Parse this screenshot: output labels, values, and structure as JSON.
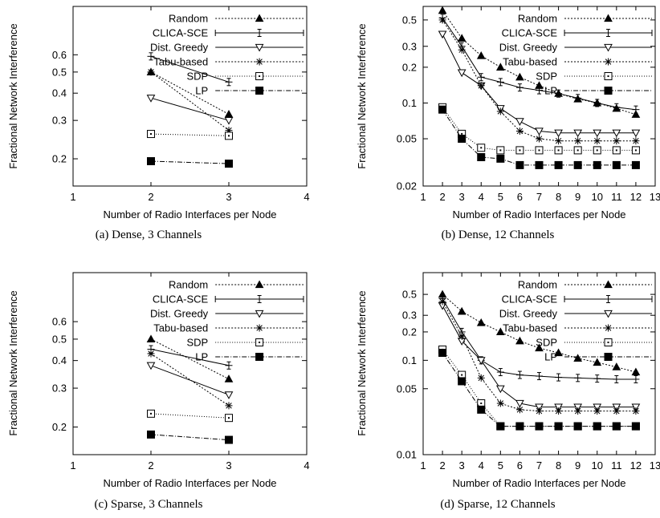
{
  "chart_data": [
    {
      "id": "a",
      "type": "line",
      "caption": "(a) Dense, 3 Channels",
      "xlabel": "Number of Radio Interfaces per Node",
      "ylabel": "Fractional Network Interference",
      "xlim": [
        1,
        4
      ],
      "ylim": [
        0.15,
        1.0
      ],
      "y_scale": "log",
      "xticks": [
        "1",
        "2",
        "3",
        "4"
      ],
      "yticks": [
        "0.2",
        "0.3",
        "0.4",
        "0.5",
        "0.6"
      ],
      "x": [
        2,
        3
      ],
      "legend_position": "top-right",
      "series": [
        {
          "name": "Random",
          "values": [
            0.5,
            0.32
          ]
        },
        {
          "name": "CLICA-SCE",
          "values": [
            0.59,
            0.45
          ]
        },
        {
          "name": "Dist. Greedy",
          "values": [
            0.38,
            0.3
          ]
        },
        {
          "name": "Tabu-based",
          "values": [
            0.5,
            0.27
          ]
        },
        {
          "name": "SDP",
          "values": [
            0.26,
            0.255
          ]
        },
        {
          "name": "LP",
          "values": [
            0.195,
            0.19
          ]
        }
      ]
    },
    {
      "id": "b",
      "type": "line",
      "caption": "(b) Dense, 12 Channels",
      "xlabel": "Number of Radio Interfaces per Node",
      "ylabel": "Fractional Network Interference",
      "xlim": [
        1,
        13
      ],
      "ylim": [
        0.02,
        0.65
      ],
      "y_scale": "log",
      "xticks": [
        "1",
        "2",
        "3",
        "4",
        "5",
        "6",
        "7",
        "8",
        "9",
        "10",
        "11",
        "12",
        "13"
      ],
      "yticks": [
        "0.02",
        "0.05",
        "0.1",
        "0.2",
        "0.3",
        "0.5"
      ],
      "x": [
        2,
        3,
        4,
        5,
        6,
        7,
        8,
        9,
        10,
        11,
        12
      ],
      "legend_position": "top-right",
      "series": [
        {
          "name": "Random",
          "values": [
            0.6,
            0.35,
            0.25,
            0.2,
            0.165,
            0.14,
            0.12,
            0.108,
            0.1,
            0.09,
            0.08
          ]
        },
        {
          "name": "CLICA-SCE",
          "values": [
            0.52,
            0.3,
            0.165,
            0.15,
            0.135,
            0.128,
            0.12,
            0.11,
            0.1,
            0.092,
            0.088
          ]
        },
        {
          "name": "Dist. Greedy",
          "values": [
            0.38,
            0.18,
            0.14,
            0.09,
            0.07,
            0.058,
            0.056,
            0.056,
            0.056,
            0.056,
            0.056
          ]
        },
        {
          "name": "Tabu-based",
          "values": [
            0.5,
            0.28,
            0.14,
            0.085,
            0.058,
            0.05,
            0.048,
            0.048,
            0.048,
            0.048,
            0.048
          ]
        },
        {
          "name": "SDP",
          "values": [
            0.092,
            0.055,
            0.042,
            0.04,
            0.04,
            0.04,
            0.04,
            0.04,
            0.04,
            0.04,
            0.04
          ]
        },
        {
          "name": "LP",
          "values": [
            0.088,
            0.05,
            0.035,
            0.034,
            0.03,
            0.03,
            0.03,
            0.03,
            0.03,
            0.03,
            0.03
          ]
        }
      ]
    },
    {
      "id": "c",
      "type": "line",
      "caption": "(c) Sparse, 3 Channels",
      "xlabel": "Number of Radio Interfaces per Node",
      "ylabel": "Fractional Network Interference",
      "xlim": [
        1,
        4
      ],
      "ylim": [
        0.15,
        1.0
      ],
      "y_scale": "log",
      "xticks": [
        "1",
        "2",
        "3",
        "4"
      ],
      "yticks": [
        "0.2",
        "0.3",
        "0.4",
        "0.5",
        "0.6"
      ],
      "x": [
        2,
        3
      ],
      "legend_position": "top-right",
      "series": [
        {
          "name": "Random",
          "values": [
            0.5,
            0.33
          ]
        },
        {
          "name": "CLICA-SCE",
          "values": [
            0.45,
            0.38
          ]
        },
        {
          "name": "Dist. Greedy",
          "values": [
            0.38,
            0.28
          ]
        },
        {
          "name": "Tabu-based",
          "values": [
            0.43,
            0.25
          ]
        },
        {
          "name": "SDP",
          "values": [
            0.23,
            0.22
          ]
        },
        {
          "name": "LP",
          "values": [
            0.185,
            0.175
          ]
        }
      ]
    },
    {
      "id": "d",
      "type": "line",
      "caption": "(d) Sparse, 12 Channels",
      "xlabel": "Number of Radio Interfaces per Node",
      "ylabel": "Fractional Network Interference",
      "xlim": [
        1,
        13
      ],
      "ylim": [
        0.01,
        0.85
      ],
      "y_scale": "log",
      "xticks": [
        "1",
        "2",
        "3",
        "4",
        "5",
        "6",
        "7",
        "8",
        "9",
        "10",
        "11",
        "12",
        "13"
      ],
      "yticks": [
        "0.01",
        "0.05",
        "0.1",
        "0.2",
        "0.3",
        "0.5"
      ],
      "x": [
        2,
        3,
        4,
        5,
        6,
        7,
        8,
        9,
        10,
        11,
        12
      ],
      "legend_position": "top-right",
      "series": [
        {
          "name": "Random",
          "values": [
            0.5,
            0.33,
            0.25,
            0.2,
            0.16,
            0.135,
            0.12,
            0.105,
            0.095,
            0.085,
            0.075
          ]
        },
        {
          "name": "CLICA-SCE",
          "values": [
            0.45,
            0.2,
            0.1,
            0.075,
            0.07,
            0.068,
            0.066,
            0.065,
            0.064,
            0.063,
            0.063
          ]
        },
        {
          "name": "Dist. Greedy",
          "values": [
            0.38,
            0.16,
            0.1,
            0.05,
            0.035,
            0.032,
            0.032,
            0.032,
            0.032,
            0.032,
            0.032
          ]
        },
        {
          "name": "Tabu-based",
          "values": [
            0.42,
            0.18,
            0.065,
            0.035,
            0.03,
            0.029,
            0.029,
            0.029,
            0.029,
            0.029,
            0.029
          ]
        },
        {
          "name": "SDP",
          "values": [
            0.13,
            0.07,
            0.035,
            0.02,
            0.02,
            0.02,
            0.02,
            0.02,
            0.02,
            0.02,
            0.02
          ]
        },
        {
          "name": "LP",
          "values": [
            0.12,
            0.06,
            0.03,
            0.02,
            0.02,
            0.02,
            0.02,
            0.02,
            0.02,
            0.02,
            0.02
          ]
        }
      ]
    }
  ]
}
